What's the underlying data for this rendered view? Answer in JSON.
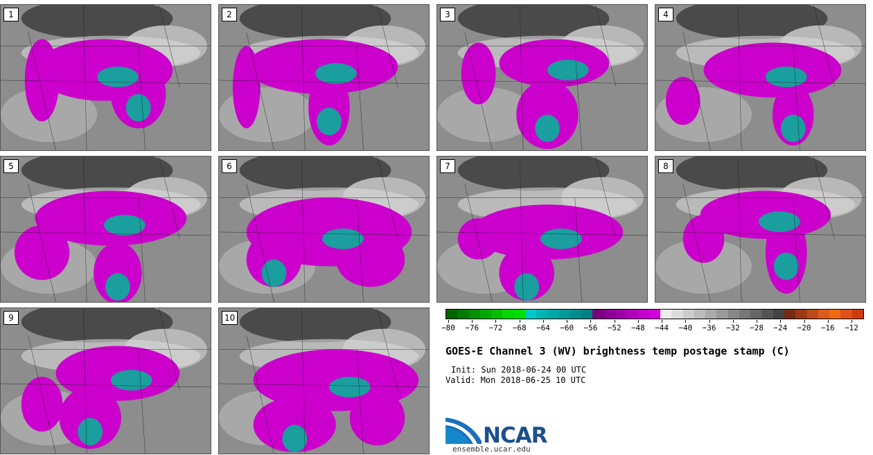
{
  "panels": [
    {
      "label": "1"
    },
    {
      "label": "2"
    },
    {
      "label": "3"
    },
    {
      "label": "4"
    },
    {
      "label": "5"
    },
    {
      "label": "6"
    },
    {
      "label": "7"
    },
    {
      "label": "8"
    },
    {
      "label": "9"
    },
    {
      "label": "10"
    }
  ],
  "colorbar": {
    "min": -80,
    "max": -10,
    "step": 2,
    "ticks": [
      "−80",
      "−76",
      "−72",
      "−68",
      "−64",
      "−60",
      "−56",
      "−52",
      "−48",
      "−44",
      "−40",
      "−36",
      "−32",
      "−28",
      "−24",
      "−20",
      "−16",
      "−12"
    ],
    "colors": [
      "#006400",
      "#007a00",
      "#009100",
      "#00a800",
      "#00bf00",
      "#00d600",
      "#00e000",
      "#00c8c8",
      "#00b4b4",
      "#00a8a8",
      "#009999",
      "#008c8c",
      "#008080",
      "#7a0080",
      "#8c0094",
      "#9e00a8",
      "#b000bb",
      "#c200cc",
      "#d400dd",
      "#eeeeee",
      "#dddddd",
      "#cccccc",
      "#bbbbbb",
      "#aaaaaa",
      "#999999",
      "#888888",
      "#777777",
      "#666666",
      "#555555",
      "#444444",
      "#7a2a10",
      "#9c3a14",
      "#bd4a18",
      "#de5a1c",
      "#f06a10",
      "#e0501a",
      "#cc3a10"
    ]
  },
  "product": {
    "title": "GOES-E Channel 3 (WV) brightness temp postage stamp (C)",
    "init": "Init: Sun 2018-06-24 00 UTC",
    "valid": "Valid: Mon 2018-06-25 10 UTC"
  },
  "logo": {
    "name": "NCAR",
    "url": "ensemble.ucar.edu",
    "color": "#1b4f8c"
  }
}
